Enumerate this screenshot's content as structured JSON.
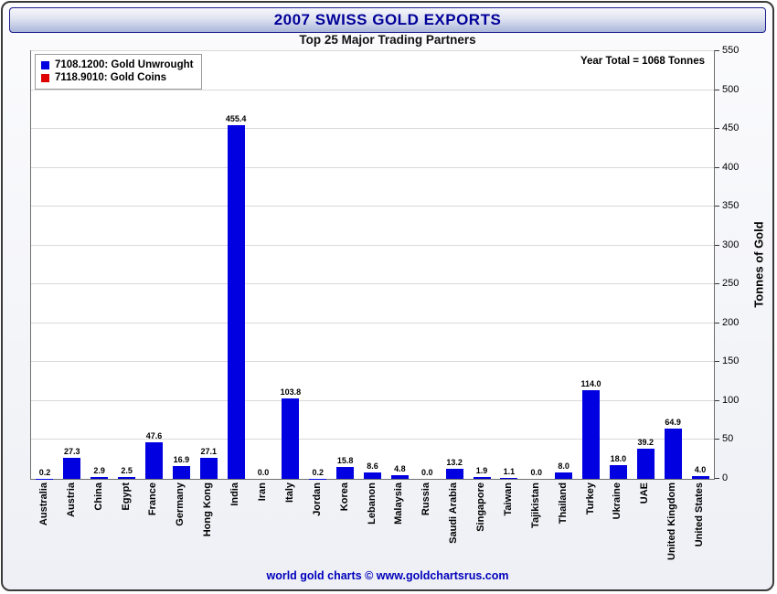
{
  "header": {
    "title": "2007 SWISS GOLD EXPORTS",
    "subtitle": "Top 25 Major Trading Partners"
  },
  "annotation": {
    "year_total": "Year Total = 1068 Tonnes"
  },
  "legend": {
    "items": [
      {
        "label": "7108.1200: Gold Unwrought",
        "color": "#0000e0"
      },
      {
        "label": "7118.9010: Gold Coins",
        "color": "#dd0000"
      }
    ]
  },
  "footer": {
    "credit": "world gold charts © www.goldchartsrus.com"
  },
  "chart_data": {
    "type": "bar",
    "title": "2007 SWISS GOLD EXPORTS",
    "subtitle": "Top 25 Major Trading Partners",
    "categories": [
      "Australia",
      "Austria",
      "China",
      "Egypt",
      "France",
      "Germany",
      "Hong Kong",
      "India",
      "Iran",
      "Italy",
      "Jordan",
      "Korea",
      "Lebanon",
      "Malaysia",
      "Russia",
      "Saudi Arabia",
      "Singapore",
      "Taiwan",
      "Tajikistan",
      "Thailand",
      "Turkey",
      "Ukraine",
      "UAE",
      "United Kingdom",
      "United States"
    ],
    "series": [
      {
        "name": "7108.1200: Gold Unwrought",
        "color": "#0000e0",
        "values": [
          0.2,
          27.3,
          2.9,
          2.5,
          47.6,
          16.9,
          27.1,
          455.4,
          0.0,
          103.8,
          0.2,
          15.8,
          8.6,
          4.8,
          0.0,
          13.2,
          1.9,
          1.1,
          0.0,
          8.0,
          114.0,
          18.0,
          39.2,
          64.9,
          4.0
        ]
      }
    ],
    "xlabel": "",
    "ylabel": "Tonnes of Gold",
    "ylim": [
      0,
      550
    ],
    "ytick_step": 50,
    "grid": true,
    "legend_position": "top-left",
    "value_labels": true,
    "yaxis_side": "right"
  }
}
